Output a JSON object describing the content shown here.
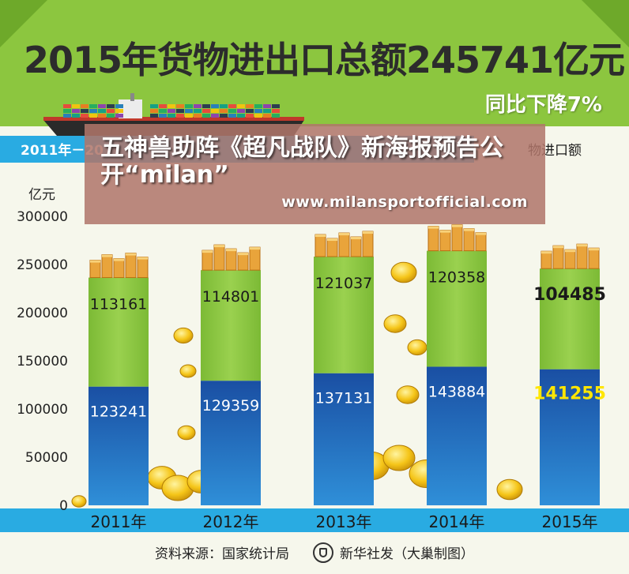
{
  "title": "2015年货物进出口总额245741亿元",
  "subtitle": "同比下降7%",
  "range_label_start": "2011年－20",
  "range_label_end": "物进口额",
  "footer": {
    "source": "资料来源：国家统计局",
    "agency": "新华社发（大巢制图）"
  },
  "overlay": {
    "headline": "五神兽助阵《超凡战队》新海报预告公开“milan”",
    "url": "www.milansportofficial.com"
  },
  "colors": {
    "header_green": "#8cc63f",
    "band_blue": "#29abe2",
    "bar_green": "#8dc63f",
    "bar_blue": "#1f5fae",
    "highlight_yellow": "#ffe600"
  },
  "chart_data": {
    "type": "bar",
    "stacked": true,
    "categories": [
      "2011年",
      "2012年",
      "2013年",
      "2014年",
      "2015年"
    ],
    "series": [
      {
        "values": [
          123241,
          129359,
          137131,
          143884,
          141255
        ]
      },
      {
        "values": [
          113161,
          114801,
          121037,
          120358,
          104485
        ]
      }
    ],
    "ylabel": "亿元",
    "ylim": [
      0,
      300000
    ],
    "yticks": [
      "0",
      "50000",
      "100000",
      "150000",
      "200000",
      "250000",
      "300000"
    ],
    "grid": false,
    "legend": "none"
  }
}
